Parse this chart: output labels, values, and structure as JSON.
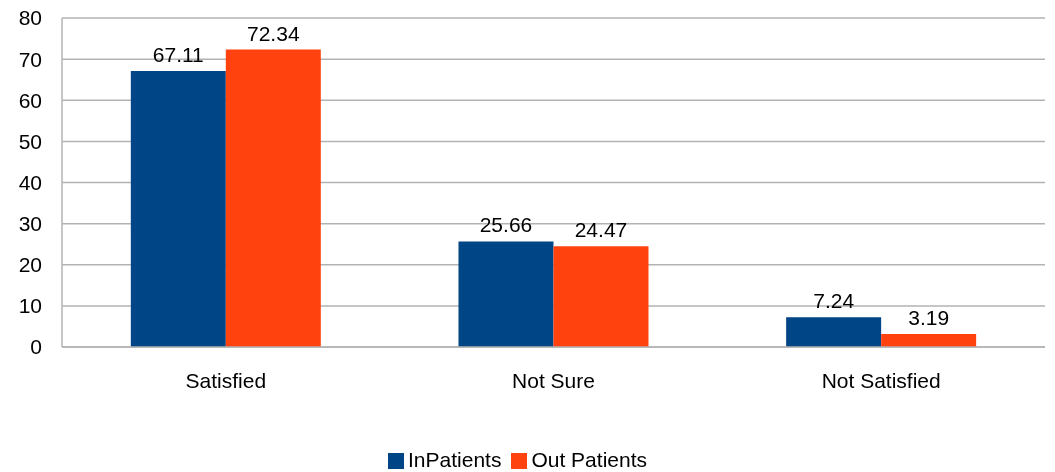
{
  "chart_data": {
    "type": "bar",
    "categories": [
      "Satisfied",
      "Not Sure",
      "Not Satisfied"
    ],
    "series": [
      {
        "name": "InPatients",
        "color": "#004586",
        "values": [
          67.11,
          25.66,
          7.24
        ]
      },
      {
        "name": "Out Patients",
        "color": "#ff420e",
        "values": [
          72.34,
          24.47,
          3.19
        ]
      }
    ],
    "ylim": [
      0,
      80
    ],
    "yticks": [
      0,
      10,
      20,
      30,
      40,
      50,
      60,
      70,
      80
    ],
    "grid": "y",
    "legend": "bottom",
    "data_labels": true
  }
}
